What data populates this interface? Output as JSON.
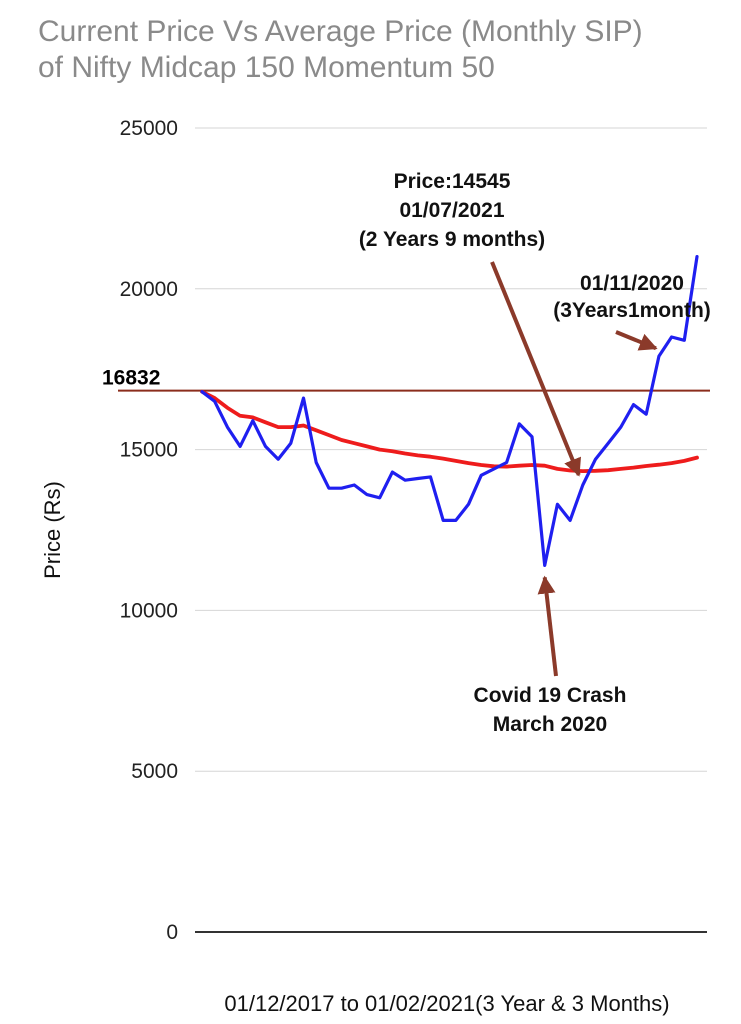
{
  "chart_data": {
    "type": "line",
    "title_lines": [
      "Current Price Vs Average Price (Monthly SIP)",
      "of Nifty Midcap 150 Momentum 50"
    ],
    "xlabel": "01/12/2017 to 01/02/2021(3 Year & 3 Months)",
    "ylabel": "Price (Rs)",
    "ylim": [
      0,
      25000
    ],
    "yticks": [
      0,
      5000,
      10000,
      15000,
      20000,
      25000
    ],
    "ytick_labels": [
      "0",
      "5000",
      "10000",
      "15000",
      "20000",
      "25000"
    ],
    "grid": true,
    "series": [
      {
        "color": "#1f1ff0",
        "values": [
          16800,
          16500,
          15700,
          15100,
          15900,
          15100,
          14700,
          15200,
          16600,
          14600,
          13800,
          13800,
          13900,
          13600,
          13500,
          14300,
          14050,
          14100,
          14150,
          12800,
          12800,
          13300,
          14200,
          14400,
          14600,
          15800,
          15400,
          11400,
          13300,
          12800,
          13900,
          14700,
          15200,
          15700,
          16400,
          16100,
          17900,
          18500,
          18400,
          21000
        ]
      },
      {
        "color": "#ee1c1c",
        "values": [
          16800,
          16600,
          16300,
          16050,
          16000,
          15850,
          15700,
          15700,
          15750,
          15600,
          15450,
          15300,
          15200,
          15100,
          15000,
          14950,
          14880,
          14820,
          14780,
          14720,
          14650,
          14580,
          14520,
          14480,
          14470,
          14500,
          14520,
          14500,
          14400,
          14350,
          14330,
          14340,
          14360,
          14400,
          14440,
          14490,
          14530,
          14580,
          14650,
          14750
        ]
      }
    ],
    "reference_line": {
      "value": 16832,
      "label": "16832",
      "color": "#8b2d1c"
    },
    "annotations": [
      {
        "lines": [
          "Price:14545",
          "01/07/2021",
          "(2 Years 9 months)"
        ],
        "point_index": 30,
        "arrow_color": "#8b3a2a"
      },
      {
        "lines": [
          "01/11/2020",
          "(3Years1month)"
        ],
        "point_index": 36,
        "arrow_color": "#8b3a2a"
      },
      {
        "lines": [
          "Covid 19 Crash",
          "March 2020"
        ],
        "point_index": 27,
        "arrow_color": "#8b3a2a"
      }
    ]
  }
}
